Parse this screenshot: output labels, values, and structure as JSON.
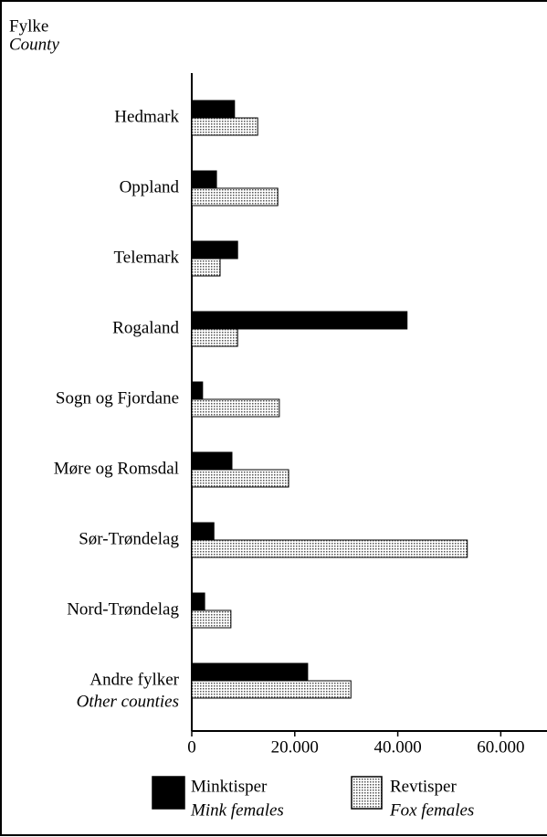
{
  "chart_data": {
    "type": "bar",
    "orientation": "horizontal",
    "y_label": "Fylke",
    "y_label_en": "County",
    "categories": [
      "Hedmark",
      "Oppland",
      "Telemark",
      "Rogaland",
      "Sogn og Fjordane",
      "Møre og Romsdal",
      "Sør-Trøndelag",
      "Nord-Trøndelag",
      "Andre fylker"
    ],
    "last_category_en": "Other counties",
    "series": [
      {
        "name": "Minktisper",
        "name_en": "Mink females",
        "color": "#000000",
        "values": [
          8300,
          4800,
          8900,
          41800,
          2100,
          7800,
          4300,
          2500,
          22500
        ]
      },
      {
        "name": "Revtisper",
        "name_en": "Fox females",
        "color": "#c8c8c8",
        "values": [
          12800,
          16700,
          5500,
          8900,
          17000,
          18800,
          53500,
          7600,
          30900
        ]
      }
    ],
    "xlim": [
      0,
      68000
    ],
    "xticks": [
      0,
      {
        "value": 20000,
        "label": "20.000"
      },
      {
        "value": 40000,
        "label": "40.000"
      },
      {
        "value": 60000,
        "label": "60.000"
      }
    ]
  }
}
